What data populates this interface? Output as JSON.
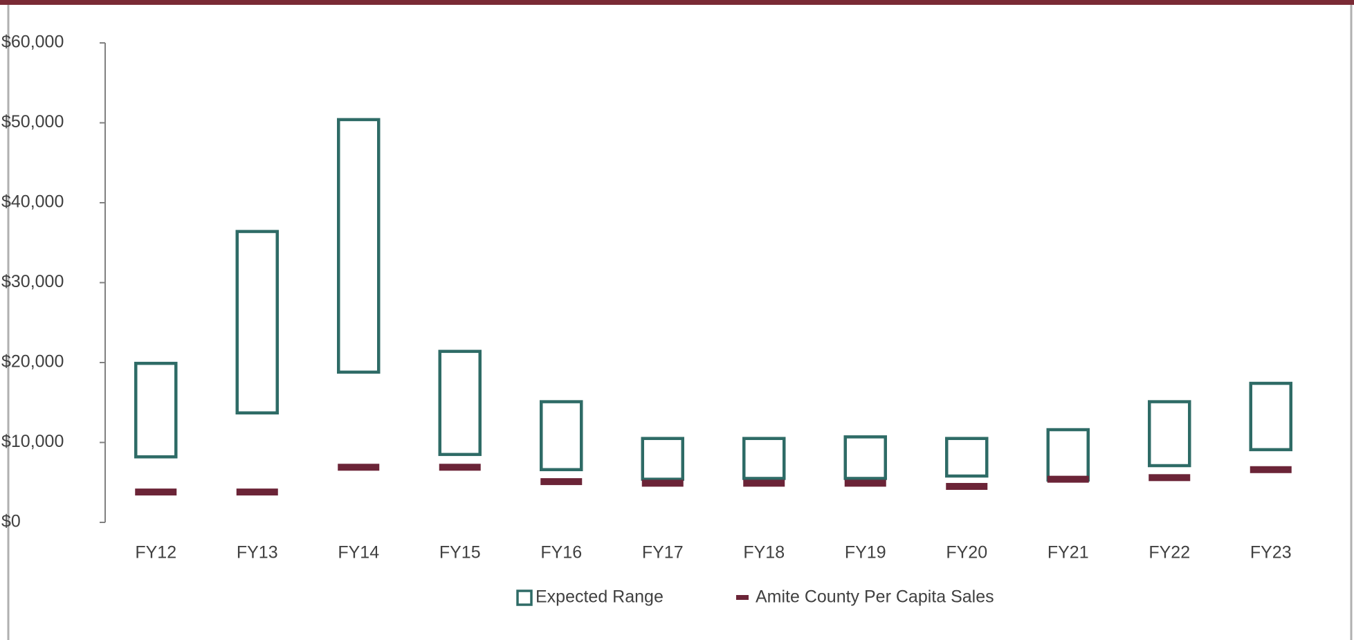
{
  "chart_data": {
    "type": "floating_bar",
    "categories": [
      "FY12",
      "FY13",
      "FY14",
      "FY15",
      "FY16",
      "FY17",
      "FY18",
      "FY19",
      "FY20",
      "FY21",
      "FY22",
      "FY23"
    ],
    "series": [
      {
        "name": "Expected Range",
        "color": "#2e6b66",
        "low": [
          8200,
          13700,
          18800,
          8500,
          6600,
          5400,
          5500,
          5500,
          5800,
          5300,
          7100,
          9100
        ],
        "high": [
          19900,
          36400,
          50400,
          21400,
          15100,
          10500,
          10500,
          10700,
          10500,
          11600,
          15100,
          17400
        ]
      },
      {
        "name": "Amite County Per Capita Sales",
        "color": "#6b2437",
        "values": [
          3800,
          3800,
          6900,
          6900,
          5100,
          4900,
          4900,
          4900,
          4500,
          5400,
          5600,
          6600
        ]
      }
    ],
    "ylim": [
      0,
      60000
    ],
    "yticks": [
      {
        "value": 0,
        "label": "$0"
      },
      {
        "value": 10000,
        "label": "$10,000"
      },
      {
        "value": 20000,
        "label": "$20,000"
      },
      {
        "value": 30000,
        "label": "$30,000"
      },
      {
        "value": 40000,
        "label": "$40,000"
      },
      {
        "value": 50000,
        "label": "$50,000"
      },
      {
        "value": 60000,
        "label": "$60,000"
      }
    ],
    "grid": false,
    "legend": "bottom"
  }
}
